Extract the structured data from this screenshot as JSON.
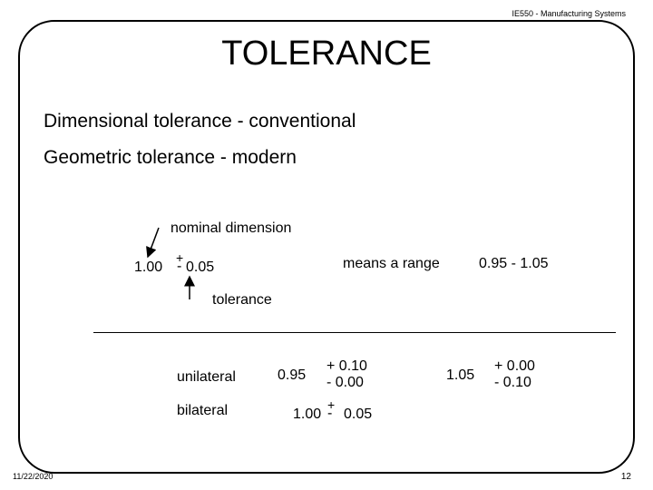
{
  "header": "IE550 - Manufacturing Systems",
  "title": "TOLERANCE",
  "lines": [
    "Dimensional tolerance   -  conventional",
    "Geometric tolerance - modern"
  ],
  "diagram": {
    "nominal_label": "nominal dimension",
    "nominal_value": "1.00",
    "plus_minus": "+",
    "minus": "-",
    "tol_value": "0.05",
    "tolerance_label": "tolerance",
    "range_label": "means a range",
    "range_value": "0.95  -  1.05"
  },
  "unilateral": {
    "label": "unilateral",
    "ex1_value": "0.95",
    "ex1_upper": "+ 0.10",
    "ex1_lower": "- 0.00",
    "ex2_value": "1.05",
    "ex2_upper": "+ 0.00",
    "ex2_lower": "- 0.10"
  },
  "bilateral": {
    "label": "bilateral",
    "value": "1.00",
    "plus": "+",
    "minus": "-",
    "tol": "0.05"
  },
  "footer": {
    "date": "11/22/2020",
    "page": "12"
  }
}
